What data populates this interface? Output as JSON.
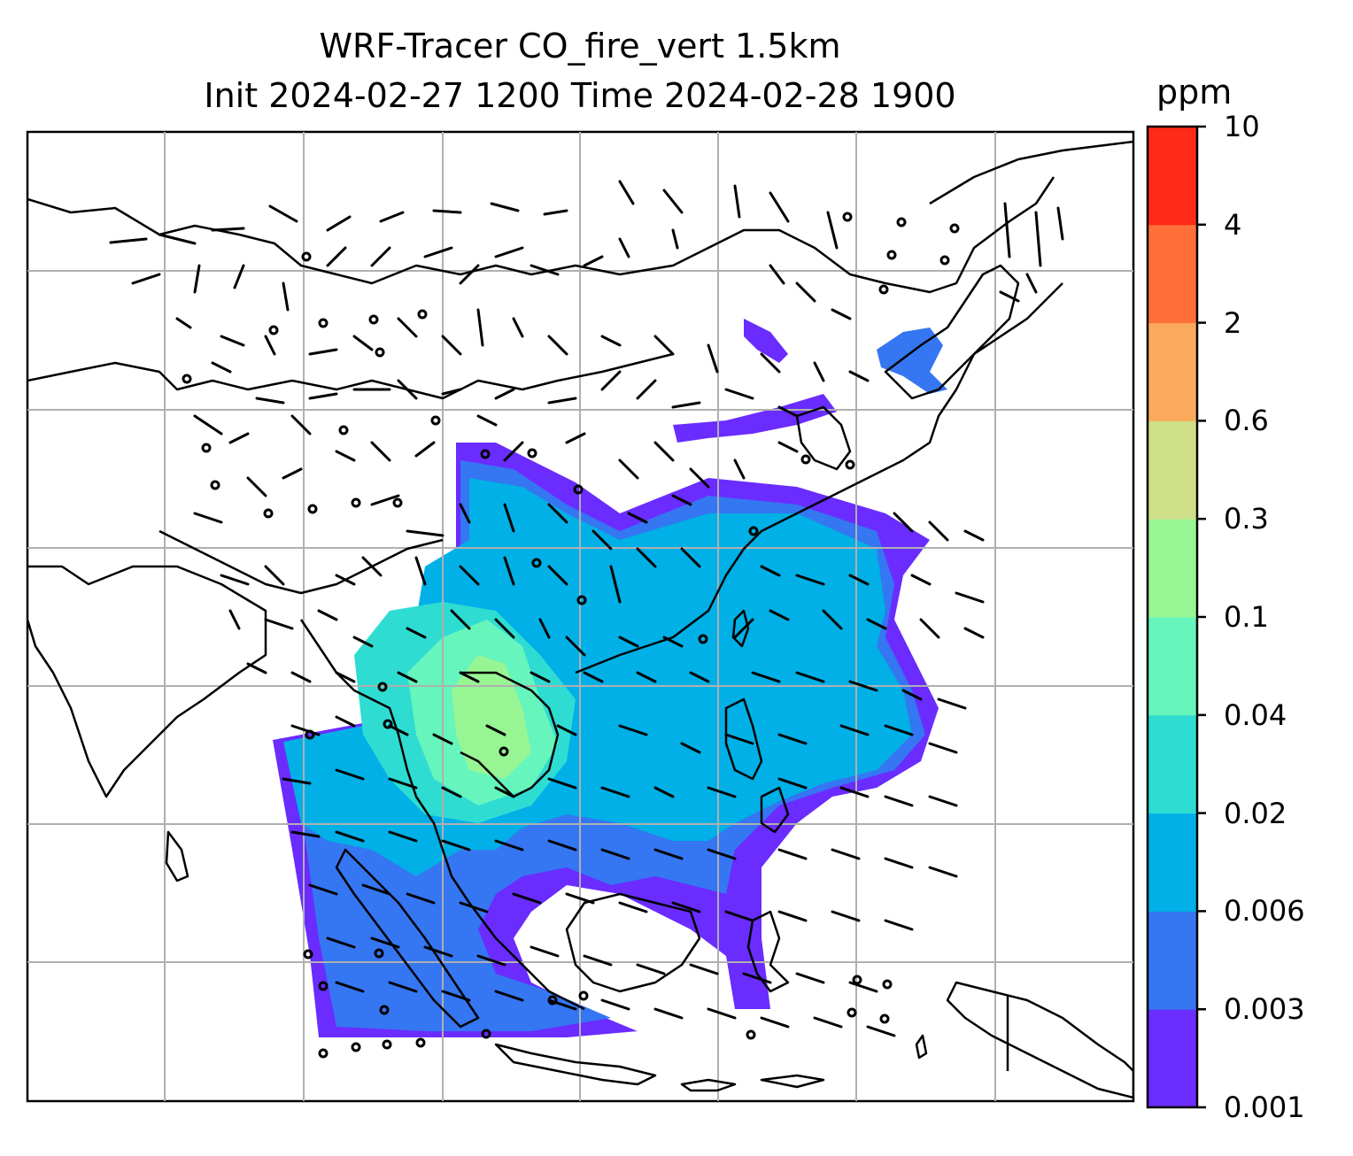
{
  "title": {
    "line1": "WRF-Tracer CO_fire_vert 1.5km",
    "line2": "Init 2024-02-27 1200 Time 2024-02-28 1900"
  },
  "colorbar": {
    "unit": "ppm",
    "levels": [
      "0.001",
      "0.003",
      "0.006",
      "0.02",
      "0.04",
      "0.1",
      "0.3",
      "0.6",
      "2",
      "4",
      "10"
    ],
    "colors": [
      "#6a2cff",
      "#3576f2",
      "#00b0e6",
      "#2fdcd2",
      "#66f5bc",
      "#98f594",
      "#cfdf88",
      "#fbaa5c",
      "#ff6f39",
      "#ff2a18"
    ]
  },
  "map": {
    "gridlines": true,
    "coastline_color": "#000000",
    "grid_color": "#b0b0b0"
  }
}
